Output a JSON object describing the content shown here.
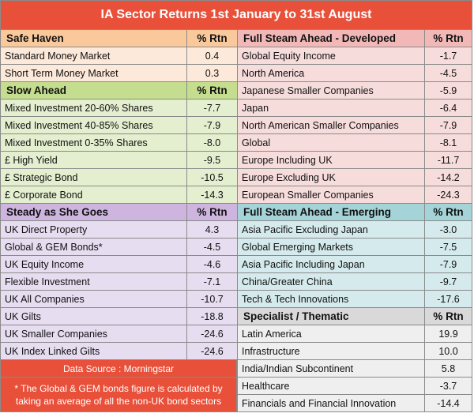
{
  "title": "IA Sector Returns 1st January to 31st August",
  "colors": {
    "title_bg": "#e8503a",
    "safe_head": "#f9c99c",
    "safe_row": "#fde9d9",
    "slow_head": "#c4dd8e",
    "slow_row": "#e4efd0",
    "steady_head": "#cdb5e0",
    "steady_row": "#e6ddf0",
    "dev_head": "#f2b8b8",
    "dev_row": "#f7dcdc",
    "emg_head": "#a5d4d8",
    "emg_row": "#d5eaec",
    "spec_head": "#d9d9d9",
    "spec_row": "#efefef"
  },
  "left_sections": [
    {
      "key": "safe",
      "header": "Safe Haven",
      "col": "% Rtn",
      "rows": [
        {
          "name": "Standard Money Market",
          "value": "0.4"
        },
        {
          "name": "Short Term Money Market",
          "value": "0.3"
        }
      ]
    },
    {
      "key": "slow",
      "header": "Slow Ahead",
      "col": "% Rtn",
      "rows": [
        {
          "name": "Mixed Investment 20-60% Shares",
          "value": "-7.7"
        },
        {
          "name": "Mixed Investment 40-85% Shares",
          "value": "-7.9"
        },
        {
          "name": "Mixed Investment 0-35% Shares",
          "value": "-8.0"
        },
        {
          "name": "£ High Yield",
          "value": "-9.5"
        },
        {
          "name": "£ Strategic Bond",
          "value": "-10.5"
        },
        {
          "name": "£ Corporate Bond",
          "value": "-14.3"
        }
      ]
    },
    {
      "key": "steady",
      "header": "Steady as She Goes",
      "col": "% Rtn",
      "rows": [
        {
          "name": "UK Direct Property",
          "value": "4.3"
        },
        {
          "name": "Global & GEM Bonds*",
          "value": "-4.5"
        },
        {
          "name": "UK Equity Income",
          "value": "-4.6"
        },
        {
          "name": "Flexible Investment",
          "value": "-7.1"
        },
        {
          "name": "UK All Companies",
          "value": "-10.7"
        },
        {
          "name": "UK Gilts",
          "value": "-18.8"
        },
        {
          "name": "UK Smaller Companies",
          "value": "-24.6"
        },
        {
          "name": "UK Index Linked Gilts",
          "value": "-24.6"
        }
      ]
    }
  ],
  "right_sections": [
    {
      "key": "dev",
      "header": "Full Steam Ahead - Developed",
      "col": "% Rtn",
      "rows": [
        {
          "name": "Global Equity Income",
          "value": "-1.7"
        },
        {
          "name": "North America",
          "value": "-4.5"
        },
        {
          "name": "Japanese Smaller Companies",
          "value": "-5.9"
        },
        {
          "name": "Japan",
          "value": "-6.4"
        },
        {
          "name": "North American Smaller Companies",
          "value": "-7.9"
        },
        {
          "name": "Global",
          "value": "-8.1"
        },
        {
          "name": "Europe Including UK",
          "value": "-11.7"
        },
        {
          "name": "Europe Excluding UK",
          "value": "-14.2"
        },
        {
          "name": "European Smaller Companies",
          "value": "-24.3"
        }
      ]
    },
    {
      "key": "emg",
      "header": "Full Steam Ahead - Emerging",
      "col": "% Rtn",
      "rows": [
        {
          "name": "Asia Pacific Excluding Japan",
          "value": "-3.0"
        },
        {
          "name": "Global Emerging Markets",
          "value": "-7.5"
        },
        {
          "name": "Asia Pacific Including Japan",
          "value": "-7.9"
        },
        {
          "name": "China/Greater China",
          "value": "-9.7"
        },
        {
          "name": "Tech & Tech Innovations",
          "value": "-17.6"
        }
      ]
    },
    {
      "key": "spec",
      "header": "Specialist / Thematic",
      "col": "% Rtn",
      "rows": [
        {
          "name": "Latin America",
          "value": "19.9"
        },
        {
          "name": "Infrastructure",
          "value": "10.0"
        },
        {
          "name": "India/Indian Subcontinent",
          "value": "5.8"
        },
        {
          "name": "Healthcare",
          "value": "-3.7"
        },
        {
          "name": "Financials and Financial Innovation",
          "value": "-14.4"
        }
      ]
    }
  ],
  "source": "Data Source : Morningstar",
  "footnote": "* The Global & GEM bonds figure is calculated by taking an average of all the non-UK bond sectors"
}
